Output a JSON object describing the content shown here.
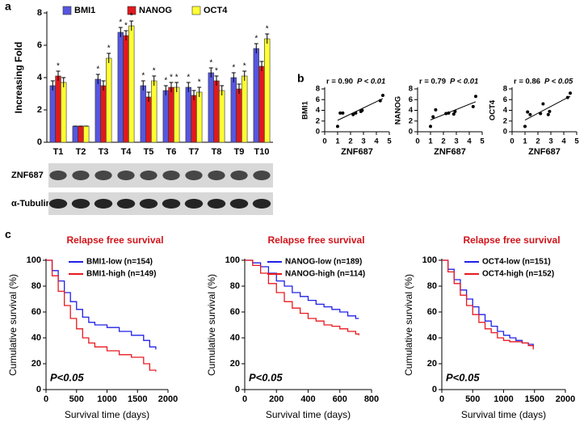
{
  "panel_letters": [
    "a",
    "b",
    "c"
  ],
  "blot": {
    "labels": [
      "ZNF687",
      "α-Tubulin"
    ]
  },
  "chart_data": [
    {
      "type": "bar",
      "y_label": "Increasing Fold",
      "categories": [
        "T1",
        "T2",
        "T3",
        "T4",
        "T5",
        "T6",
        "T7",
        "T8",
        "T9",
        "T10"
      ],
      "ylim": [
        0,
        8
      ],
      "yticks": [
        0,
        2,
        4,
        6,
        8
      ],
      "legend": "top",
      "series": [
        {
          "name": "BMI1",
          "color": "#5656e0",
          "values": [
            3.5,
            1,
            3.9,
            6.8,
            3.5,
            3.2,
            3.4,
            4.3,
            4.0,
            5.8
          ],
          "errors": [
            0.3,
            0,
            0.3,
            0.3,
            0.3,
            0.3,
            0.3,
            0.3,
            0.3,
            0.3
          ],
          "markers": [
            null,
            null,
            "*",
            "*",
            "*",
            "*",
            "*",
            "*",
            "*",
            "*"
          ]
        },
        {
          "name": "NANOG",
          "color": "#e0191f",
          "values": [
            4.1,
            1,
            3.5,
            6.6,
            2.8,
            3.4,
            2.9,
            3.8,
            3.3,
            4.7
          ],
          "errors": [
            0.3,
            0,
            0.3,
            0.3,
            0.3,
            0.3,
            0.3,
            0.3,
            0.3,
            0.3
          ],
          "markers": [
            "*",
            null,
            null,
            "*",
            null,
            "*",
            null,
            "*",
            null,
            null
          ]
        },
        {
          "name": "OCT4",
          "color": "#ffff33",
          "values": [
            3.7,
            1,
            5.2,
            7.2,
            3.8,
            3.4,
            3.1,
            3.2,
            4.1,
            6.4
          ],
          "errors": [
            0.3,
            0,
            0.3,
            0.3,
            0.3,
            0.3,
            0.3,
            0.3,
            0.3,
            0.3
          ],
          "markers": [
            null,
            null,
            "*",
            "*",
            "*",
            "*",
            "*",
            null,
            "*",
            "*"
          ]
        }
      ]
    },
    {
      "type": "scatter",
      "annotations": [
        "r = 0.90",
        "P < 0.01"
      ],
      "x_label": "ZNF687",
      "y_label": "BMI1",
      "xlim": [
        0,
        5
      ],
      "xticks": [
        0,
        1,
        2,
        3,
        4,
        5
      ],
      "ylim": [
        0,
        8
      ],
      "yticks": [
        0,
        2,
        4,
        6,
        8
      ],
      "x": [
        1.0,
        1.2,
        1.4,
        2.2,
        2.4,
        2.8,
        2.9,
        4.3,
        4.5
      ],
      "values": [
        1.0,
        3.5,
        3.5,
        3.2,
        3.5,
        3.8,
        4.0,
        5.8,
        6.8
      ],
      "color": "#000000"
    },
    {
      "type": "scatter",
      "annotations": [
        "r = 0.79",
        "P < 0.01"
      ],
      "x_label": "ZNF687",
      "y_label": "NANOG",
      "xlim": [
        0,
        5
      ],
      "xticks": [
        0,
        1,
        2,
        3,
        4,
        5
      ],
      "ylim": [
        0,
        8
      ],
      "yticks": [
        0,
        2,
        4,
        6,
        8
      ],
      "x": [
        1.0,
        1.2,
        1.4,
        2.2,
        2.4,
        2.8,
        2.9,
        4.3,
        4.5
      ],
      "values": [
        1.0,
        2.8,
        4.1,
        3.4,
        3.5,
        3.3,
        3.8,
        4.7,
        6.6
      ],
      "color": "#000000"
    },
    {
      "type": "scatter",
      "annotations": [
        "r = 0.86",
        "P < 0.05"
      ],
      "x_label": "ZNF687",
      "y_label": "OCT4",
      "xlim": [
        0,
        5
      ],
      "xticks": [
        0,
        1,
        2,
        3,
        4,
        5
      ],
      "ylim": [
        0,
        8
      ],
      "yticks": [
        0,
        2,
        4,
        6,
        8
      ],
      "x": [
        1.0,
        1.2,
        1.4,
        2.2,
        2.4,
        2.8,
        2.9,
        4.3,
        4.5
      ],
      "values": [
        1.0,
        3.7,
        3.2,
        3.4,
        5.2,
        3.2,
        3.8,
        6.4,
        7.2
      ],
      "color": "#000000"
    },
    {
      "type": "line",
      "step": true,
      "title": "Relapse free survival",
      "x_label": "Survival time (days)",
      "y_label": "Cumulative survival (%)",
      "annotation": "P<0.05",
      "xlim": [
        0,
        2000
      ],
      "xticks": [
        0,
        500,
        1000,
        1500,
        2000
      ],
      "ylim": [
        0,
        100
      ],
      "yticks": [
        0,
        20,
        40,
        60,
        80,
        100
      ],
      "legend": "upper right",
      "series": [
        {
          "name": "BMI1-low (n=154)",
          "color": "#2020e8",
          "x": [
            0,
            100,
            200,
            300,
            400,
            500,
            600,
            700,
            800,
            1000,
            1200,
            1400,
            1600,
            1700,
            1800
          ],
          "values": [
            100,
            92,
            84,
            75,
            68,
            62,
            56,
            52,
            50,
            48,
            45,
            42,
            38,
            33,
            31
          ]
        },
        {
          "name": "BMI1-high (n=149)",
          "color": "#e8191f",
          "x": [
            0,
            100,
            200,
            300,
            400,
            500,
            600,
            700,
            800,
            1000,
            1200,
            1400,
            1600,
            1700,
            1800
          ],
          "values": [
            100,
            88,
            76,
            65,
            55,
            47,
            40,
            36,
            33,
            30,
            27,
            25,
            20,
            15,
            14
          ]
        }
      ]
    },
    {
      "type": "line",
      "step": true,
      "title": "Relapse free survival",
      "x_label": "Survival time (days)",
      "y_label": "Cumulative survival (%)",
      "annotation": "P<0.05",
      "xlim": [
        0,
        800
      ],
      "xticks": [
        0,
        200,
        400,
        600,
        800
      ],
      "ylim": [
        0,
        100
      ],
      "yticks": [
        0,
        20,
        40,
        60,
        80,
        100
      ],
      "legend": "upper right",
      "series": [
        {
          "name": "NANOG-low (n=189)",
          "color": "#2020e8",
          "x": [
            0,
            50,
            100,
            150,
            200,
            250,
            300,
            350,
            400,
            450,
            500,
            550,
            600,
            650,
            700,
            720
          ],
          "values": [
            100,
            98,
            95,
            90,
            84,
            80,
            75,
            72,
            69,
            66,
            64,
            62,
            60,
            57,
            55,
            55
          ]
        },
        {
          "name": "NANOG-high (n=114)",
          "color": "#e8191f",
          "x": [
            0,
            50,
            100,
            150,
            200,
            250,
            300,
            350,
            400,
            450,
            500,
            550,
            600,
            650,
            700,
            720
          ],
          "values": [
            100,
            96,
            90,
            82,
            75,
            68,
            63,
            59,
            55,
            53,
            50,
            49,
            47,
            45,
            43,
            42
          ]
        }
      ]
    },
    {
      "type": "line",
      "step": true,
      "title": "Relapse free survival",
      "x_label": "Survival time (days)",
      "y_label": "Cumulative survival (%)",
      "annotation": "P<0.05",
      "xlim": [
        0,
        2000
      ],
      "xticks": [
        0,
        500,
        1000,
        1500,
        2000
      ],
      "ylim": [
        0,
        100
      ],
      "yticks": [
        0,
        20,
        40,
        60,
        80,
        100
      ],
      "legend": "upper right",
      "series": [
        {
          "name": "OCT4-low (n=151)",
          "color": "#2020e8",
          "x": [
            0,
            100,
            200,
            300,
            400,
            500,
            600,
            700,
            800,
            900,
            1000,
            1100,
            1200,
            1300,
            1400,
            1480
          ],
          "values": [
            100,
            93,
            85,
            77,
            70,
            64,
            58,
            53,
            49,
            45,
            42,
            40,
            38,
            36,
            35,
            33
          ]
        },
        {
          "name": "OCT4-high (n=152)",
          "color": "#e8191f",
          "x": [
            0,
            100,
            200,
            300,
            400,
            500,
            600,
            700,
            800,
            900,
            1000,
            1100,
            1200,
            1300,
            1400,
            1480
          ],
          "values": [
            100,
            91,
            82,
            73,
            65,
            58,
            52,
            47,
            44,
            40,
            38,
            37,
            37,
            36,
            34,
            31
          ]
        }
      ]
    }
  ]
}
